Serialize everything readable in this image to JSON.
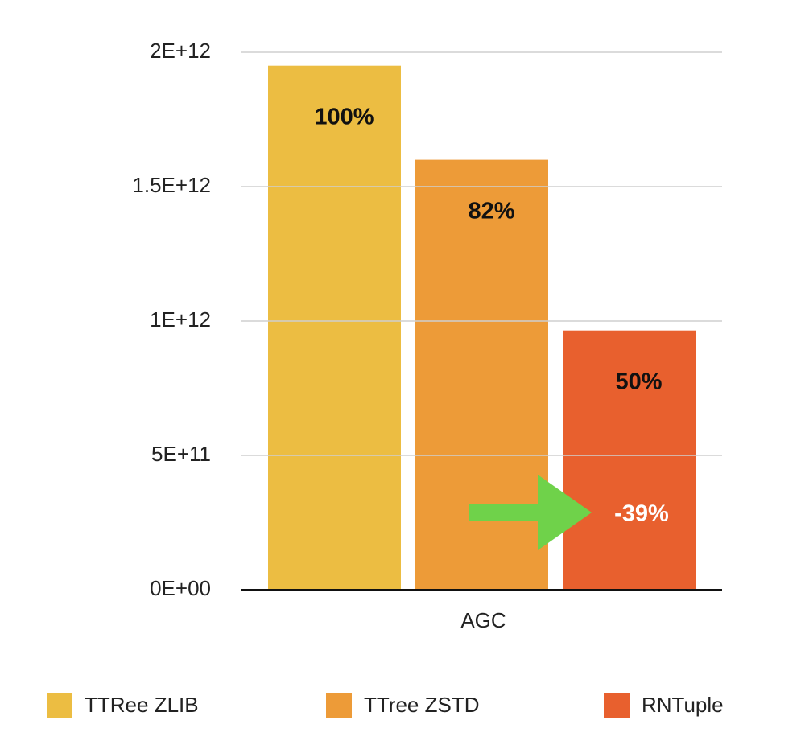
{
  "chart_data": {
    "type": "bar",
    "categories": [
      "AGC"
    ],
    "series": [
      {
        "name": "TTRee ZLIB",
        "color": "#ecbd42",
        "values": [
          1950000000000
        ],
        "annotation": "100%"
      },
      {
        "name": "TTree ZSTD",
        "color": "#ed9b38",
        "values": [
          1600000000000
        ],
        "annotation": "82%"
      },
      {
        "name": "RNTuple",
        "color": "#e8602e",
        "values": [
          965000000000
        ],
        "annotation": "50%"
      }
    ],
    "annotations": [
      "-39%"
    ],
    "ylim": [
      0,
      2000000000000
    ],
    "yticks": [
      {
        "value": 0,
        "label": "0E+00"
      },
      {
        "value": 500000000000,
        "label": "5E+11"
      },
      {
        "value": 1000000000000,
        "label": "1E+12"
      },
      {
        "value": 1500000000000,
        "label": "1.5E+12"
      },
      {
        "value": 2000000000000,
        "label": "2E+12"
      }
    ],
    "grid": true,
    "legend": "bottom"
  }
}
